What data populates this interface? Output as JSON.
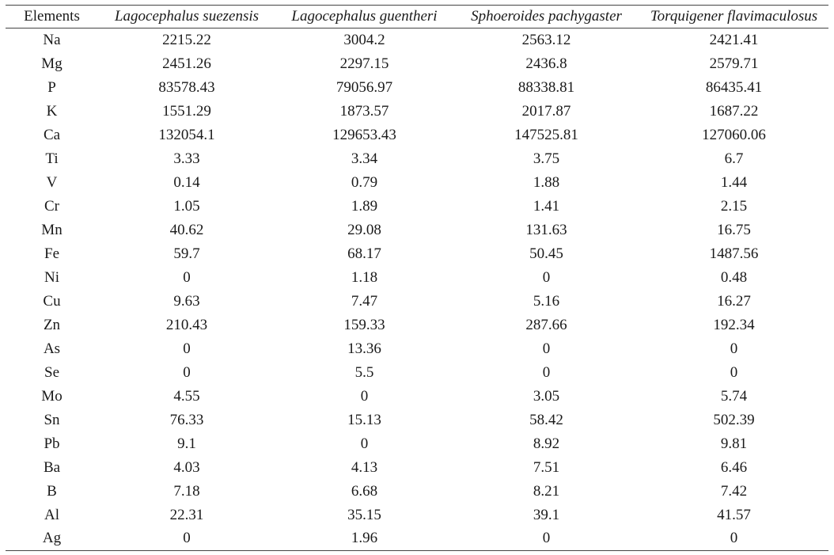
{
  "table": {
    "headers": [
      "Elements",
      "Lagocephalus suezensis",
      "Lagocephalus guentheri",
      "Sphoeroides pachygaster",
      "Torquigener flavimaculosus"
    ],
    "rows": [
      [
        "Na",
        "2215.22",
        "3004.2",
        "2563.12",
        "2421.41"
      ],
      [
        "Mg",
        "2451.26",
        "2297.15",
        "2436.8",
        "2579.71"
      ],
      [
        "P",
        "83578.43",
        "79056.97",
        "88338.81",
        "86435.41"
      ],
      [
        "K",
        "1551.29",
        "1873.57",
        "2017.87",
        "1687.22"
      ],
      [
        "Ca",
        "132054.1",
        "129653.43",
        "147525.81",
        "127060.06"
      ],
      [
        "Ti",
        "3.33",
        "3.34",
        "3.75",
        "6.7"
      ],
      [
        "V",
        "0.14",
        "0.79",
        "1.88",
        "1.44"
      ],
      [
        "Cr",
        "1.05",
        "1.89",
        "1.41",
        "2.15"
      ],
      [
        "Mn",
        "40.62",
        "29.08",
        "131.63",
        "16.75"
      ],
      [
        "Fe",
        "59.7",
        "68.17",
        "50.45",
        "1487.56"
      ],
      [
        "Ni",
        "0",
        "1.18",
        "0",
        "0.48"
      ],
      [
        "Cu",
        "9.63",
        "7.47",
        "5.16",
        "16.27"
      ],
      [
        "Zn",
        "210.43",
        "159.33",
        "287.66",
        "192.34"
      ],
      [
        "As",
        "0",
        "13.36",
        "0",
        "0"
      ],
      [
        "Se",
        "0",
        "5.5",
        "0",
        "0"
      ],
      [
        "Mo",
        "4.55",
        "0",
        "3.05",
        "5.74"
      ],
      [
        "Sn",
        "76.33",
        "15.13",
        "58.42",
        "502.39"
      ],
      [
        "Pb",
        "9.1",
        "0",
        "8.92",
        "9.81"
      ],
      [
        "Ba",
        "4.03",
        "4.13",
        "7.51",
        "6.46"
      ],
      [
        "B",
        "7.18",
        "6.68",
        "8.21",
        "7.42"
      ],
      [
        "Al",
        "22.31",
        "35.15",
        "39.1",
        "41.57"
      ],
      [
        "Ag",
        "0",
        "1.96",
        "0",
        "0"
      ]
    ]
  }
}
